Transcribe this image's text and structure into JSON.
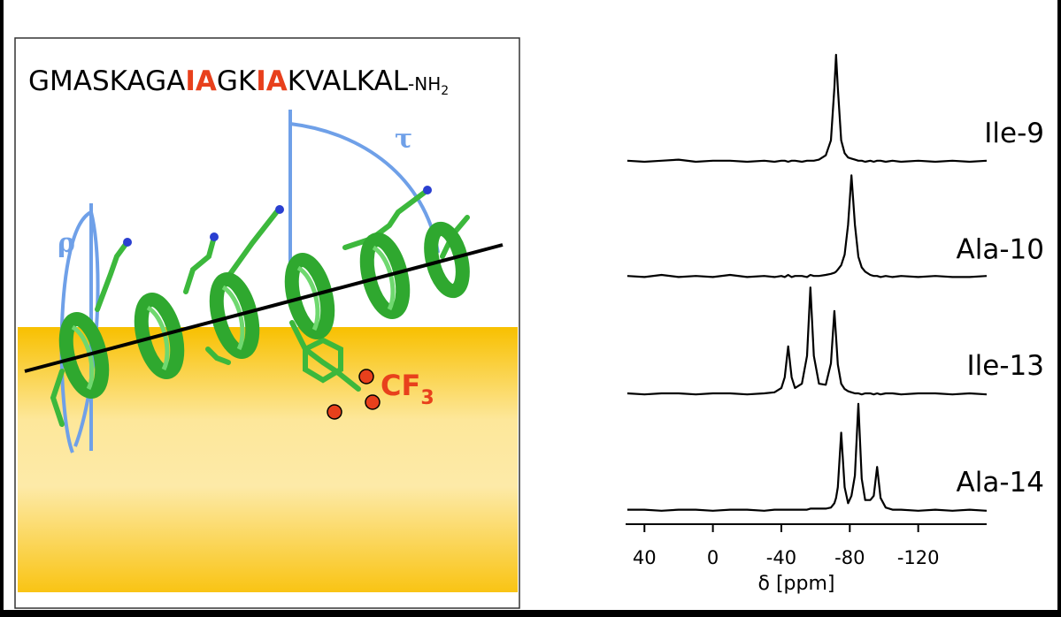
{
  "panel": {
    "sequence": [
      "GMASKAGA",
      "IA",
      "GK",
      "IA",
      "KVALKAL",
      "-NH",
      "2"
    ],
    "tau": "τ",
    "rho": "ρ",
    "label_cf": "CF",
    "label_sub": "3"
  },
  "chart_data": {
    "type": "line",
    "xlabel": "δ [ppm]",
    "xlim": [
      51,
      -160
    ],
    "xticks": [
      40,
      0,
      -40,
      -80,
      -120
    ],
    "x": [
      50,
      40,
      30,
      20,
      10,
      0,
      -10,
      -20,
      -30,
      -36,
      -40,
      -42,
      -44,
      -46,
      -48,
      -52,
      -55,
      -57,
      -59,
      -62,
      -66,
      -69,
      -71,
      -72,
      -73,
      -75,
      -77,
      -79,
      -81,
      -83,
      -85,
      -87,
      -89,
      -92,
      -94,
      -96,
      -98,
      -101,
      -105,
      -110,
      -120,
      -130,
      -140,
      -150,
      -160
    ],
    "series": [
      {
        "name": "Ile-9",
        "color": "#000000",
        "values": [
          1,
          0,
          1,
          2,
          0,
          1,
          1,
          0,
          1,
          0,
          1,
          1,
          0,
          1,
          1,
          0,
          1,
          1,
          1,
          2,
          6,
          20,
          69,
          100,
          69,
          20,
          8,
          4,
          3,
          2,
          1,
          1,
          0,
          1,
          0,
          1,
          1,
          0,
          1,
          0,
          1,
          0,
          1,
          0,
          1
        ]
      },
      {
        "name": "Ala-10",
        "color": "#000000",
        "values": [
          2,
          1,
          3,
          1,
          2,
          1,
          3,
          1,
          2,
          1,
          2,
          1,
          3,
          1,
          2,
          2,
          1,
          3,
          2,
          2,
          3,
          4,
          5,
          6,
          8,
          12,
          22,
          50,
          96,
          50,
          20,
          10,
          6,
          3,
          2,
          2,
          1,
          2,
          1,
          2,
          1,
          2,
          1,
          1,
          2
        ]
      },
      {
        "name": "Ile-13",
        "color": "#000000",
        "values": [
          1,
          0,
          1,
          1,
          0,
          1,
          1,
          0,
          1,
          2,
          6,
          16,
          45,
          16,
          6,
          10,
          36,
          100,
          36,
          10,
          9,
          29,
          78,
          54,
          28,
          10,
          5,
          3,
          2,
          1,
          1,
          0,
          1,
          1,
          0,
          1,
          0,
          1,
          1,
          0,
          1,
          1,
          0,
          1,
          0
        ]
      },
      {
        "name": "Ala-14",
        "color": "#000000",
        "values": [
          1,
          1,
          0,
          1,
          1,
          0,
          1,
          1,
          0,
          1,
          1,
          1,
          1,
          1,
          1,
          1,
          1,
          2,
          2,
          2,
          2,
          3,
          7,
          12,
          22,
          73,
          22,
          7,
          14,
          33,
          100,
          30,
          10,
          10,
          14,
          41,
          12,
          3,
          1,
          1,
          0,
          1,
          0,
          1,
          0
        ]
      }
    ]
  }
}
